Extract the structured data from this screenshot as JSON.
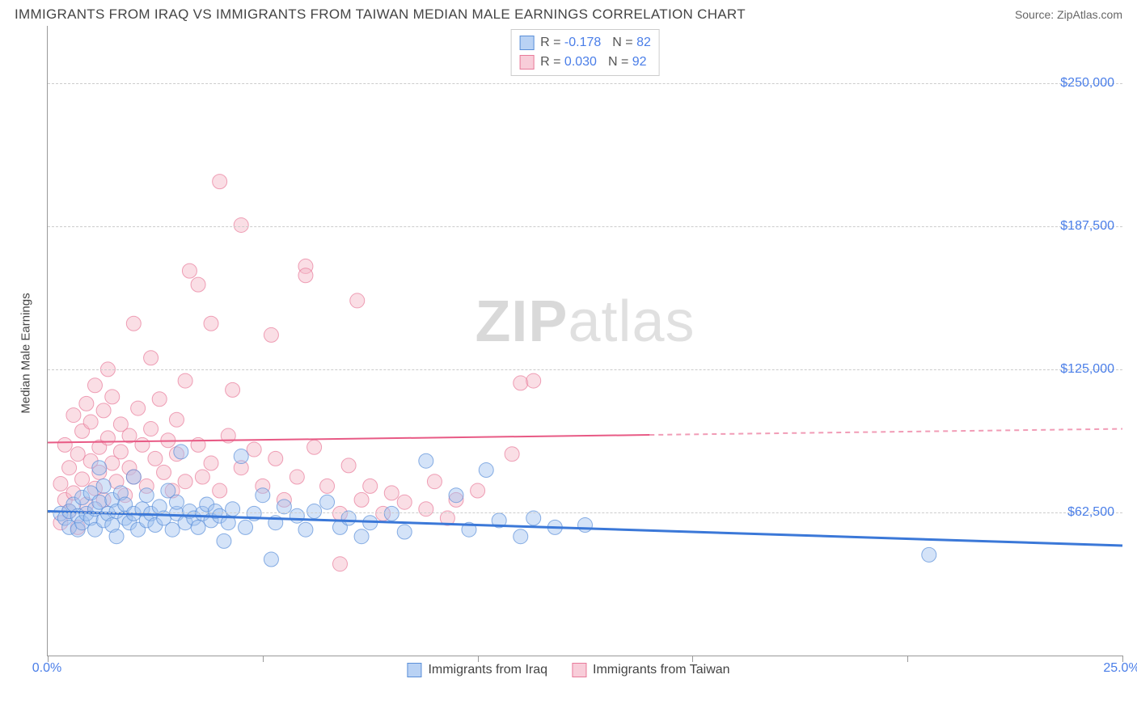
{
  "header": {
    "title": "IMMIGRANTS FROM IRAQ VS IMMIGRANTS FROM TAIWAN MEDIAN MALE EARNINGS CORRELATION CHART",
    "source_prefix": "Source: ",
    "source": "ZipAtlas.com"
  },
  "chart": {
    "type": "scatter",
    "ylabel": "Median Male Earnings",
    "xlim": [
      0,
      25
    ],
    "ylim": [
      0,
      275000
    ],
    "xtick_positions": [
      0,
      5,
      10,
      15,
      20,
      25
    ],
    "xtick_labels_shown": {
      "0": "0.0%",
      "25": "25.0%"
    },
    "ytick_positions": [
      62500,
      125000,
      187500,
      250000
    ],
    "ytick_labels": [
      "$62,500",
      "$125,000",
      "$187,500",
      "$250,000"
    ],
    "grid_color": "#cccccc",
    "axis_color": "#999999",
    "background_color": "#ffffff",
    "label_color": "#4a7ee8",
    "text_color": "#444444",
    "title_fontsize": 17,
    "label_fontsize": 15,
    "tick_fontsize": 16,
    "marker_radius": 9,
    "marker_opacity": 0.45,
    "series": [
      {
        "name": "Immigrants from Iraq",
        "color_fill": "#9fc0ef",
        "color_stroke": "#5a8fd8",
        "swatch_fill": "#b9d2f4",
        "swatch_border": "#5a8fd8",
        "R": "-0.178",
        "N": "82",
        "trend": {
          "y_at_xmin": 63000,
          "y_at_xmax": 48000,
          "stroke": "#3b78d8",
          "width": 3,
          "solid_until_x": 25
        },
        "points": [
          [
            0.3,
            62000
          ],
          [
            0.4,
            60000
          ],
          [
            0.5,
            63000
          ],
          [
            0.5,
            56000
          ],
          [
            0.6,
            66000
          ],
          [
            0.7,
            61000
          ],
          [
            0.7,
            55000
          ],
          [
            0.8,
            69000
          ],
          [
            0.8,
            58000
          ],
          [
            0.9,
            62000
          ],
          [
            1.0,
            60000
          ],
          [
            1.0,
            71000
          ],
          [
            1.1,
            55000
          ],
          [
            1.1,
            64000
          ],
          [
            1.2,
            67000
          ],
          [
            1.2,
            82000
          ],
          [
            1.3,
            59000
          ],
          [
            1.3,
            74000
          ],
          [
            1.4,
            62000
          ],
          [
            1.5,
            68000
          ],
          [
            1.5,
            57000
          ],
          [
            1.6,
            63000
          ],
          [
            1.6,
            52000
          ],
          [
            1.7,
            71000
          ],
          [
            1.8,
            60000
          ],
          [
            1.8,
            66000
          ],
          [
            1.9,
            58000
          ],
          [
            2.0,
            62000
          ],
          [
            2.0,
            78000
          ],
          [
            2.1,
            55000
          ],
          [
            2.2,
            64000
          ],
          [
            2.3,
            70000
          ],
          [
            2.3,
            59000
          ],
          [
            2.4,
            62000
          ],
          [
            2.5,
            57000
          ],
          [
            2.6,
            65000
          ],
          [
            2.7,
            60000
          ],
          [
            2.8,
            72000
          ],
          [
            2.9,
            55000
          ],
          [
            3.0,
            62000
          ],
          [
            3.0,
            67000
          ],
          [
            3.1,
            89000
          ],
          [
            3.2,
            58000
          ],
          [
            3.3,
            63000
          ],
          [
            3.4,
            60000
          ],
          [
            3.5,
            56000
          ],
          [
            3.6,
            62000
          ],
          [
            3.7,
            66000
          ],
          [
            3.8,
            59000
          ],
          [
            3.9,
            63000
          ],
          [
            4.0,
            61000
          ],
          [
            4.1,
            50000
          ],
          [
            4.2,
            58000
          ],
          [
            4.3,
            64000
          ],
          [
            4.5,
            87000
          ],
          [
            4.6,
            56000
          ],
          [
            4.8,
            62000
          ],
          [
            5.0,
            70000
          ],
          [
            5.2,
            42000
          ],
          [
            5.3,
            58000
          ],
          [
            5.5,
            65000
          ],
          [
            5.8,
            61000
          ],
          [
            6.0,
            55000
          ],
          [
            6.2,
            63000
          ],
          [
            6.5,
            67000
          ],
          [
            6.8,
            56000
          ],
          [
            7.0,
            60000
          ],
          [
            7.3,
            52000
          ],
          [
            7.5,
            58000
          ],
          [
            8.0,
            62000
          ],
          [
            8.3,
            54000
          ],
          [
            8.8,
            85000
          ],
          [
            9.5,
            70000
          ],
          [
            9.8,
            55000
          ],
          [
            10.2,
            81000
          ],
          [
            10.5,
            59000
          ],
          [
            11.0,
            52000
          ],
          [
            11.3,
            60000
          ],
          [
            11.8,
            56000
          ],
          [
            12.5,
            57000
          ],
          [
            20.5,
            44000
          ]
        ]
      },
      {
        "name": "Immigrants from Taiwan",
        "color_fill": "#f4b6c6",
        "color_stroke": "#e87a9a",
        "swatch_fill": "#f8cdd9",
        "swatch_border": "#e87a9a",
        "R": "0.030",
        "N": "92",
        "trend": {
          "y_at_xmin": 93000,
          "y_at_xmax": 99000,
          "stroke": "#e85a85",
          "width": 2,
          "solid_until_x": 14
        },
        "points": [
          [
            0.3,
            58000
          ],
          [
            0.3,
            75000
          ],
          [
            0.4,
            68000
          ],
          [
            0.4,
            92000
          ],
          [
            0.5,
            82000
          ],
          [
            0.5,
            63000
          ],
          [
            0.6,
            105000
          ],
          [
            0.6,
            71000
          ],
          [
            0.7,
            88000
          ],
          [
            0.7,
            56000
          ],
          [
            0.8,
            98000
          ],
          [
            0.8,
            77000
          ],
          [
            0.9,
            110000
          ],
          [
            0.9,
            66000
          ],
          [
            1.0,
            85000
          ],
          [
            1.0,
            102000
          ],
          [
            1.1,
            73000
          ],
          [
            1.1,
            118000
          ],
          [
            1.2,
            91000
          ],
          [
            1.2,
            80000
          ],
          [
            1.3,
            107000
          ],
          [
            1.3,
            68000
          ],
          [
            1.4,
            95000
          ],
          [
            1.4,
            125000
          ],
          [
            1.5,
            84000
          ],
          [
            1.5,
            113000
          ],
          [
            1.6,
            76000
          ],
          [
            1.7,
            101000
          ],
          [
            1.7,
            89000
          ],
          [
            1.8,
            70000
          ],
          [
            1.9,
            96000
          ],
          [
            1.9,
            82000
          ],
          [
            2.0,
            145000
          ],
          [
            2.0,
            78000
          ],
          [
            2.1,
            108000
          ],
          [
            2.2,
            92000
          ],
          [
            2.3,
            74000
          ],
          [
            2.4,
            99000
          ],
          [
            2.4,
            130000
          ],
          [
            2.5,
            86000
          ],
          [
            2.6,
            112000
          ],
          [
            2.7,
            80000
          ],
          [
            2.8,
            94000
          ],
          [
            2.9,
            72000
          ],
          [
            3.0,
            103000
          ],
          [
            3.0,
            88000
          ],
          [
            3.2,
            120000
          ],
          [
            3.2,
            76000
          ],
          [
            3.3,
            168000
          ],
          [
            3.5,
            92000
          ],
          [
            3.5,
            162000
          ],
          [
            3.6,
            78000
          ],
          [
            3.8,
            145000
          ],
          [
            3.8,
            84000
          ],
          [
            4.0,
            207000
          ],
          [
            4.0,
            72000
          ],
          [
            4.2,
            96000
          ],
          [
            4.3,
            116000
          ],
          [
            4.5,
            82000
          ],
          [
            4.5,
            188000
          ],
          [
            4.8,
            90000
          ],
          [
            5.0,
            74000
          ],
          [
            5.2,
            140000
          ],
          [
            5.3,
            86000
          ],
          [
            5.5,
            68000
          ],
          [
            5.8,
            78000
          ],
          [
            6.0,
            170000
          ],
          [
            6.0,
            166000
          ],
          [
            6.2,
            91000
          ],
          [
            6.5,
            74000
          ],
          [
            6.8,
            62000
          ],
          [
            7.0,
            83000
          ],
          [
            7.2,
            155000
          ],
          [
            7.3,
            68000
          ],
          [
            7.5,
            74000
          ],
          [
            7.8,
            62000
          ],
          [
            8.0,
            71000
          ],
          [
            8.3,
            67000
          ],
          [
            8.8,
            64000
          ],
          [
            9.0,
            76000
          ],
          [
            9.3,
            60000
          ],
          [
            9.5,
            68000
          ],
          [
            10.0,
            72000
          ],
          [
            10.8,
            88000
          ],
          [
            11.0,
            119000
          ],
          [
            11.3,
            120000
          ],
          [
            6.8,
            40000
          ]
        ]
      }
    ],
    "legend_top": {
      "R_label": "R = ",
      "N_label": "N = "
    },
    "watermark_parts": [
      "ZIP",
      "atlas"
    ]
  }
}
